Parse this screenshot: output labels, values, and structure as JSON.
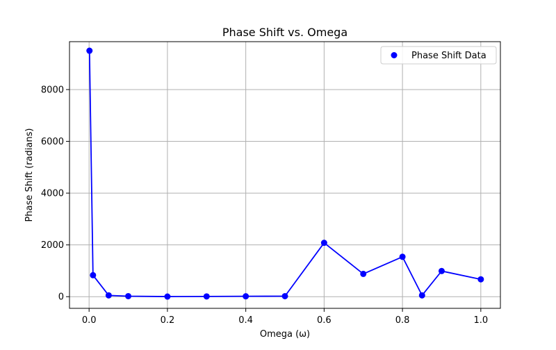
{
  "chart_data": {
    "type": "scatter",
    "title": "Phase Shift vs. Omega",
    "xlabel": "Omega (ω)",
    "ylabel": "Phase Shift (radians)",
    "xlim": [
      -0.05,
      1.05
    ],
    "ylim": [
      -450,
      9850
    ],
    "xticks": [
      0.0,
      0.2,
      0.4,
      0.6,
      0.8,
      1.0
    ],
    "xtick_labels": [
      "0.0",
      "0.2",
      "0.4",
      "0.6",
      "0.8",
      "1.0"
    ],
    "yticks": [
      0,
      2000,
      4000,
      6000,
      8000
    ],
    "ytick_labels": [
      "0",
      "2000",
      "4000",
      "6000",
      "8000"
    ],
    "grid": true,
    "legend_position": "top-right",
    "series": [
      {
        "name": "Phase Shift Data",
        "color": "#0000ff",
        "marker": "circle",
        "connected_line": true,
        "x": [
          0.001,
          0.01,
          0.05,
          0.1,
          0.2,
          0.3,
          0.4,
          0.5,
          0.6,
          0.7,
          0.8,
          0.85,
          0.9,
          1.0
        ],
        "y": [
          9500,
          830,
          50,
          20,
          5,
          10,
          15,
          20,
          2080,
          880,
          1540,
          50,
          990,
          670
        ]
      }
    ]
  }
}
